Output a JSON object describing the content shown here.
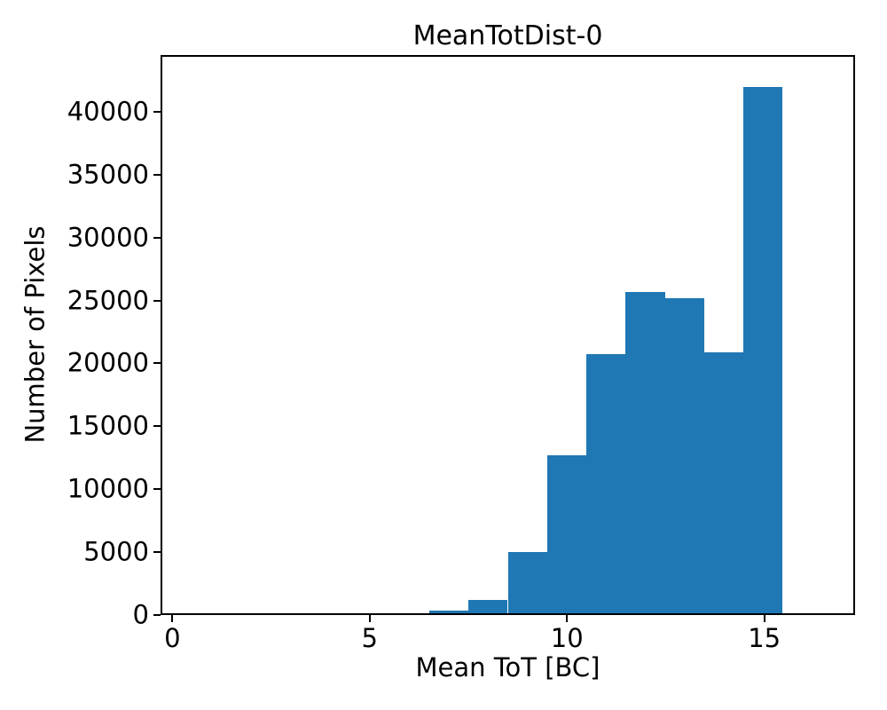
{
  "title": "MeanTotDist-0",
  "x_axis_label": "Mean ToT [BC]",
  "y_axis_label": "Number of Pixels",
  "colors": {
    "bar": "#1f77b4",
    "axis": "#000000",
    "background": "#ffffff",
    "text": "#000000"
  },
  "chart_data": {
    "type": "bar",
    "subtype": "histogram",
    "title": "MeanTotDist-0",
    "xlabel": "Mean ToT [BC]",
    "ylabel": "Number of Pixels",
    "bin_edges": [
      6.5,
      7.5,
      8.5,
      9.5,
      10.5,
      11.5,
      12.5,
      13.5,
      14.5,
      15.5
    ],
    "counts": [
      200,
      1100,
      4900,
      12600,
      20700,
      25700,
      25200,
      20900,
      42100
    ],
    "xlim": [
      -0.3,
      17.3
    ],
    "ylim": [
      0,
      44500
    ],
    "xticks": [
      0,
      5,
      10,
      15
    ],
    "yticks": [
      0,
      5000,
      10000,
      15000,
      20000,
      25000,
      30000,
      35000,
      40000
    ],
    "grid": false,
    "legend": null
  }
}
